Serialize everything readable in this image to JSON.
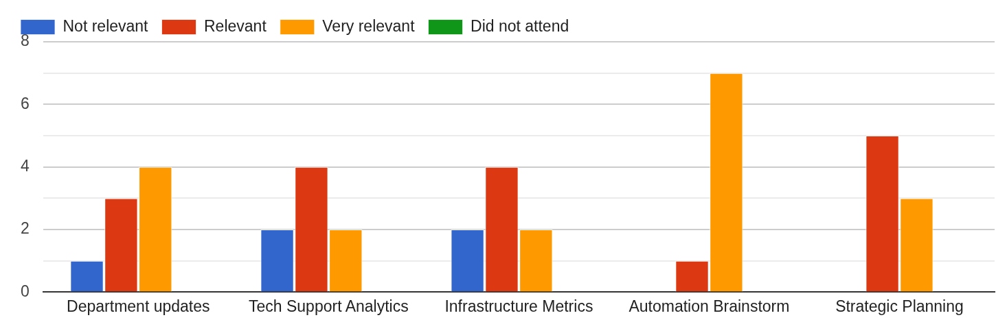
{
  "chart_data": {
    "type": "bar",
    "categories": [
      "Department updates",
      "Tech Support Analytics",
      "Infrastructure Metrics",
      "Automation Brainstorm",
      "Strategic Planning"
    ],
    "series": [
      {
        "name": "Not relevant",
        "color": "#3366cc",
        "values": [
          1,
          2,
          2,
          0,
          0
        ]
      },
      {
        "name": "Relevant",
        "color": "#dc3912",
        "values": [
          3,
          4,
          4,
          1,
          5
        ]
      },
      {
        "name": "Very relevant",
        "color": "#ff9900",
        "values": [
          4,
          2,
          2,
          7,
          3
        ]
      },
      {
        "name": "Did not attend",
        "color": "#109618",
        "values": [
          0,
          0,
          0,
          0,
          0
        ]
      }
    ],
    "ylim": [
      0,
      8
    ],
    "yticks": [
      0,
      {
        "value": 1,
        "label": null
      },
      2,
      {
        "value": 3,
        "label": null
      },
      4,
      {
        "value": 5,
        "label": null
      },
      6,
      {
        "value": 7,
        "label": null
      },
      8
    ],
    "grid": true,
    "legend": "top left"
  }
}
